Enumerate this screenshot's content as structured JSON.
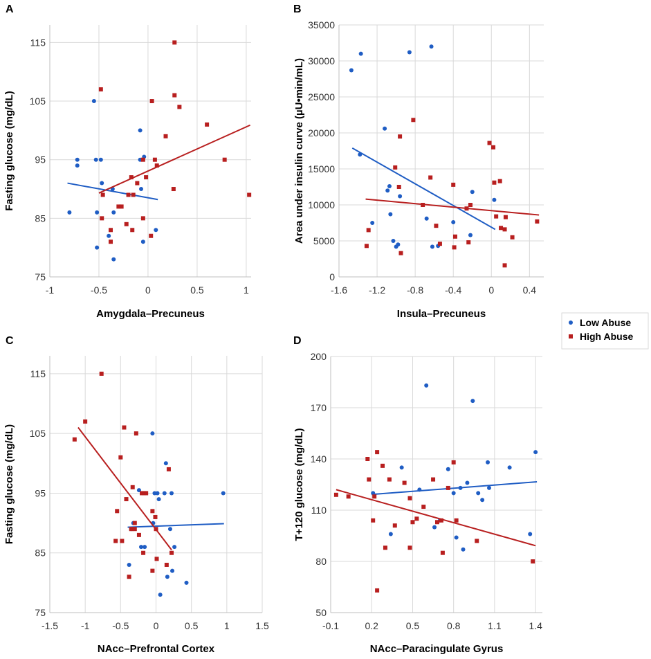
{
  "colors": {
    "low": "#1F5DC4",
    "high": "#B81F1F",
    "grid": "#D9D9D9",
    "axis": "#BFBFBF"
  },
  "legend": {
    "title": "",
    "entries": [
      {
        "key": "low",
        "label": "Low Abuse"
      },
      {
        "key": "high",
        "label": "High Abuse"
      }
    ],
    "placement": "right-middle"
  },
  "chart_data": [
    {
      "id": "A",
      "type": "scatter",
      "letter": "A",
      "xlabel": "Amygdala–Precuneus",
      "ylabel": "Fasting glucose (mg/dL)",
      "xlim": [
        -1,
        1.05
      ],
      "ylim": [
        75,
        118
      ],
      "xticks": [
        -1,
        -0.5,
        0,
        0.5,
        1
      ],
      "xtick_labels": [
        "-1",
        "-0.5",
        "0",
        "0.5",
        "1"
      ],
      "yticks": [
        75,
        85,
        95,
        105,
        115
      ],
      "ytick_labels": [
        "75",
        "85",
        "95",
        "105",
        "115"
      ],
      "series": [
        {
          "name": "Low Abuse",
          "key": "low",
          "marker": "circle",
          "points": [
            [
              -0.8,
              86
            ],
            [
              -0.72,
              95
            ],
            [
              -0.72,
              94
            ],
            [
              -0.55,
              105
            ],
            [
              -0.53,
              95
            ],
            [
              -0.52,
              80
            ],
            [
              -0.52,
              86
            ],
            [
              -0.48,
              95
            ],
            [
              -0.47,
              91
            ],
            [
              -0.4,
              82
            ],
            [
              -0.36,
              90
            ],
            [
              -0.35,
              86
            ],
            [
              -0.35,
              78
            ],
            [
              -0.08,
              100
            ],
            [
              -0.08,
              95
            ],
            [
              -0.07,
              90
            ],
            [
              -0.04,
              95.5
            ],
            [
              -0.05,
              81
            ],
            [
              0.08,
              83
            ]
          ],
          "trend": [
            [
              -0.82,
              91
            ],
            [
              0.1,
              88.2
            ]
          ]
        },
        {
          "name": "High Abuse",
          "key": "high",
          "marker": "square",
          "points": [
            [
              -0.48,
              107
            ],
            [
              -0.47,
              85
            ],
            [
              -0.46,
              89
            ],
            [
              -0.38,
              81
            ],
            [
              -0.38,
              83
            ],
            [
              -0.3,
              87
            ],
            [
              -0.27,
              87
            ],
            [
              -0.22,
              84
            ],
            [
              -0.2,
              89
            ],
            [
              -0.17,
              92
            ],
            [
              -0.16,
              83
            ],
            [
              -0.15,
              89
            ],
            [
              -0.11,
              91
            ],
            [
              -0.05,
              85
            ],
            [
              -0.05,
              95
            ],
            [
              -0.02,
              92
            ],
            [
              0.03,
              82
            ],
            [
              0.04,
              105
            ],
            [
              0.07,
              95
            ],
            [
              0.09,
              94
            ],
            [
              0.18,
              99
            ],
            [
              0.26,
              90
            ],
            [
              0.27,
              115
            ],
            [
              0.27,
              106
            ],
            [
              0.32,
              104
            ],
            [
              0.6,
              101
            ],
            [
              0.78,
              95
            ],
            [
              1.03,
              89
            ]
          ],
          "trend": [
            [
              -0.5,
              89.3
            ],
            [
              1.04,
              100.9
            ]
          ]
        }
      ]
    },
    {
      "id": "B",
      "type": "scatter",
      "letter": "B",
      "xlabel": "Insula–Precuneus",
      "ylabel": "Area under insulin curve (µU•min/mL)",
      "xlim": [
        -1.6,
        0.55
      ],
      "ylim": [
        0,
        35000
      ],
      "xticks": [
        -1.6,
        -1.2,
        -0.8,
        -0.4,
        0,
        0.4
      ],
      "xtick_labels": [
        "-1.6",
        "-1.2",
        "-0.8",
        "-0.4",
        "0",
        "0.4"
      ],
      "yticks": [
        0,
        5000,
        10000,
        15000,
        20000,
        25000,
        30000,
        35000
      ],
      "ytick_labels": [
        "0",
        "5000",
        "10000",
        "15000",
        "20000",
        "25000",
        "30000",
        "35000"
      ],
      "series": [
        {
          "name": "Low Abuse",
          "key": "low",
          "marker": "circle",
          "points": [
            [
              -1.47,
              28700
            ],
            [
              -1.37,
              31000
            ],
            [
              -1.38,
              17000
            ],
            [
              -1.25,
              7500
            ],
            [
              -1.12,
              20600
            ],
            [
              -1.09,
              12000
            ],
            [
              -1.07,
              12600
            ],
            [
              -1.06,
              8700
            ],
            [
              -1.03,
              5000
            ],
            [
              -1.0,
              4200
            ],
            [
              -0.98,
              4500
            ],
            [
              -0.96,
              11200
            ],
            [
              -0.86,
              31200
            ],
            [
              -0.63,
              32000
            ],
            [
              -0.68,
              8100
            ],
            [
              -0.62,
              4200
            ],
            [
              -0.56,
              4300
            ],
            [
              -0.4,
              7600
            ],
            [
              -0.22,
              5800
            ],
            [
              -0.2,
              11800
            ],
            [
              0.03,
              10700
            ]
          ],
          "trend": [
            [
              -1.46,
              17900
            ],
            [
              0.04,
              6600
            ]
          ]
        },
        {
          "name": "High Abuse",
          "key": "high",
          "marker": "square",
          "points": [
            [
              -1.31,
              4300
            ],
            [
              -1.29,
              6500
            ],
            [
              -1.01,
              15200
            ],
            [
              -0.97,
              12500
            ],
            [
              -0.96,
              19500
            ],
            [
              -0.95,
              3300
            ],
            [
              -0.82,
              21800
            ],
            [
              -0.72,
              10000
            ],
            [
              -0.64,
              13800
            ],
            [
              -0.58,
              7100
            ],
            [
              -0.54,
              4600
            ],
            [
              -0.4,
              12800
            ],
            [
              -0.39,
              4100
            ],
            [
              -0.38,
              5600
            ],
            [
              -0.26,
              9500
            ],
            [
              -0.24,
              4800
            ],
            [
              -0.22,
              10000
            ],
            [
              -0.02,
              18600
            ],
            [
              0.02,
              18000
            ],
            [
              0.03,
              13100
            ],
            [
              0.05,
              8400
            ],
            [
              0.09,
              13300
            ],
            [
              0.1,
              6800
            ],
            [
              0.14,
              6600
            ],
            [
              0.14,
              1600
            ],
            [
              0.15,
              8300
            ],
            [
              0.22,
              5500
            ],
            [
              0.48,
              7700
            ]
          ],
          "trend": [
            [
              -1.32,
              10800
            ],
            [
              0.5,
              8600
            ]
          ]
        }
      ]
    },
    {
      "id": "C",
      "type": "scatter",
      "letter": "C",
      "xlabel": "NAcc–Prefrontal Cortex",
      "ylabel": "Fasting glucose (mg/dL)",
      "xlim": [
        -1.5,
        1.5
      ],
      "ylim": [
        75,
        118
      ],
      "xticks": [
        -1.5,
        -1,
        -0.5,
        0,
        0.5,
        1,
        1.5
      ],
      "xtick_labels": [
        "-1.5",
        "-1",
        "-0.5",
        "0",
        "0.5",
        "1",
        "1.5"
      ],
      "yticks": [
        75,
        85,
        95,
        105,
        115
      ],
      "ytick_labels": [
        "75",
        "85",
        "95",
        "105",
        "115"
      ],
      "series": [
        {
          "name": "Low Abuse",
          "key": "low",
          "marker": "circle",
          "points": [
            [
              -0.38,
              83
            ],
            [
              -0.35,
              89
            ],
            [
              -0.32,
              90
            ],
            [
              -0.24,
              95.5
            ],
            [
              -0.21,
              86
            ],
            [
              -0.16,
              86
            ],
            [
              -0.05,
              105
            ],
            [
              -0.04,
              90
            ],
            [
              -0.02,
              95
            ],
            [
              0.02,
              95
            ],
            [
              0.04,
              94
            ],
            [
              0.06,
              78
            ],
            [
              0.12,
              95
            ],
            [
              0.14,
              100
            ],
            [
              0.16,
              81
            ],
            [
              0.2,
              89
            ],
            [
              0.22,
              95
            ],
            [
              0.23,
              82
            ],
            [
              0.26,
              86
            ],
            [
              0.43,
              80
            ],
            [
              0.95,
              95
            ]
          ],
          "trend": [
            [
              -0.4,
              89.3
            ],
            [
              0.96,
              89.9
            ]
          ]
        },
        {
          "name": "High Abuse",
          "key": "high",
          "marker": "square",
          "points": [
            [
              -1.15,
              104
            ],
            [
              -1.0,
              107
            ],
            [
              -0.77,
              115
            ],
            [
              -0.57,
              87
            ],
            [
              -0.55,
              92
            ],
            [
              -0.5,
              101
            ],
            [
              -0.48,
              87
            ],
            [
              -0.45,
              106
            ],
            [
              -0.42,
              94
            ],
            [
              -0.38,
              81
            ],
            [
              -0.35,
              89
            ],
            [
              -0.33,
              96
            ],
            [
              -0.3,
              89
            ],
            [
              -0.3,
              90
            ],
            [
              -0.28,
              105
            ],
            [
              -0.24,
              88
            ],
            [
              -0.2,
              95
            ],
            [
              -0.18,
              85
            ],
            [
              -0.17,
              95
            ],
            [
              -0.14,
              95
            ],
            [
              -0.05,
              92
            ],
            [
              -0.05,
              82
            ],
            [
              -0.01,
              91
            ],
            [
              0.0,
              89
            ],
            [
              0.01,
              84
            ],
            [
              0.15,
              83
            ],
            [
              0.18,
              99
            ],
            [
              0.22,
              85
            ]
          ],
          "trend": [
            [
              -1.1,
              106
            ],
            [
              0.22,
              85.5
            ]
          ]
        }
      ]
    },
    {
      "id": "D",
      "type": "scatter",
      "letter": "D",
      "xlabel": "NAcc–Paracingulate Gyrus",
      "ylabel": "T+120 glucose (mg/dL)",
      "xlim": [
        -0.1,
        1.45
      ],
      "ylim": [
        50,
        200
      ],
      "xticks": [
        -0.1,
        0.2,
        0.5,
        0.8,
        1.1,
        1.4
      ],
      "xtick_labels": [
        "-0.1",
        "0.2",
        "0.5",
        "0.8",
        "1.1",
        "1.4"
      ],
      "yticks": [
        50,
        80,
        110,
        140,
        170,
        200
      ],
      "ytick_labels": [
        "50",
        "80",
        "110",
        "140",
        "170",
        "200"
      ],
      "series": [
        {
          "name": "Low Abuse",
          "key": "low",
          "marker": "circle",
          "points": [
            [
              0.21,
              120
            ],
            [
              0.34,
              96
            ],
            [
              0.42,
              135
            ],
            [
              0.55,
              122
            ],
            [
              0.6,
              183
            ],
            [
              0.66,
              100
            ],
            [
              0.7,
              104
            ],
            [
              0.76,
              134
            ],
            [
              0.8,
              120
            ],
            [
              0.82,
              94
            ],
            [
              0.85,
              123
            ],
            [
              0.87,
              87
            ],
            [
              0.9,
              126
            ],
            [
              0.94,
              174
            ],
            [
              0.98,
              120
            ],
            [
              1.01,
              116
            ],
            [
              1.05,
              138
            ],
            [
              1.06,
              123
            ],
            [
              1.21,
              135
            ],
            [
              1.36,
              96
            ],
            [
              1.4,
              144
            ]
          ],
          "trend": [
            [
              0.2,
              119.2
            ],
            [
              1.41,
              126.6
            ]
          ]
        },
        {
          "name": "High Abuse",
          "key": "high",
          "marker": "square",
          "points": [
            [
              -0.06,
              119
            ],
            [
              0.03,
              118
            ],
            [
              0.17,
              140
            ],
            [
              0.18,
              128
            ],
            [
              0.21,
              104
            ],
            [
              0.22,
              118
            ],
            [
              0.24,
              144
            ],
            [
              0.24,
              63
            ],
            [
              0.28,
              136
            ],
            [
              0.3,
              88
            ],
            [
              0.33,
              128
            ],
            [
              0.37,
              101
            ],
            [
              0.44,
              126
            ],
            [
              0.48,
              88
            ],
            [
              0.48,
              117
            ],
            [
              0.5,
              103
            ],
            [
              0.53,
              105
            ],
            [
              0.58,
              112
            ],
            [
              0.65,
              128
            ],
            [
              0.68,
              103
            ],
            [
              0.71,
              104
            ],
            [
              0.72,
              85
            ],
            [
              0.76,
              123
            ],
            [
              0.8,
              138
            ],
            [
              0.82,
              104
            ],
            [
              0.97,
              92
            ],
            [
              1.38,
              80
            ]
          ],
          "trend": [
            [
              -0.06,
              122
            ],
            [
              1.4,
              89.2
            ]
          ]
        }
      ]
    }
  ]
}
